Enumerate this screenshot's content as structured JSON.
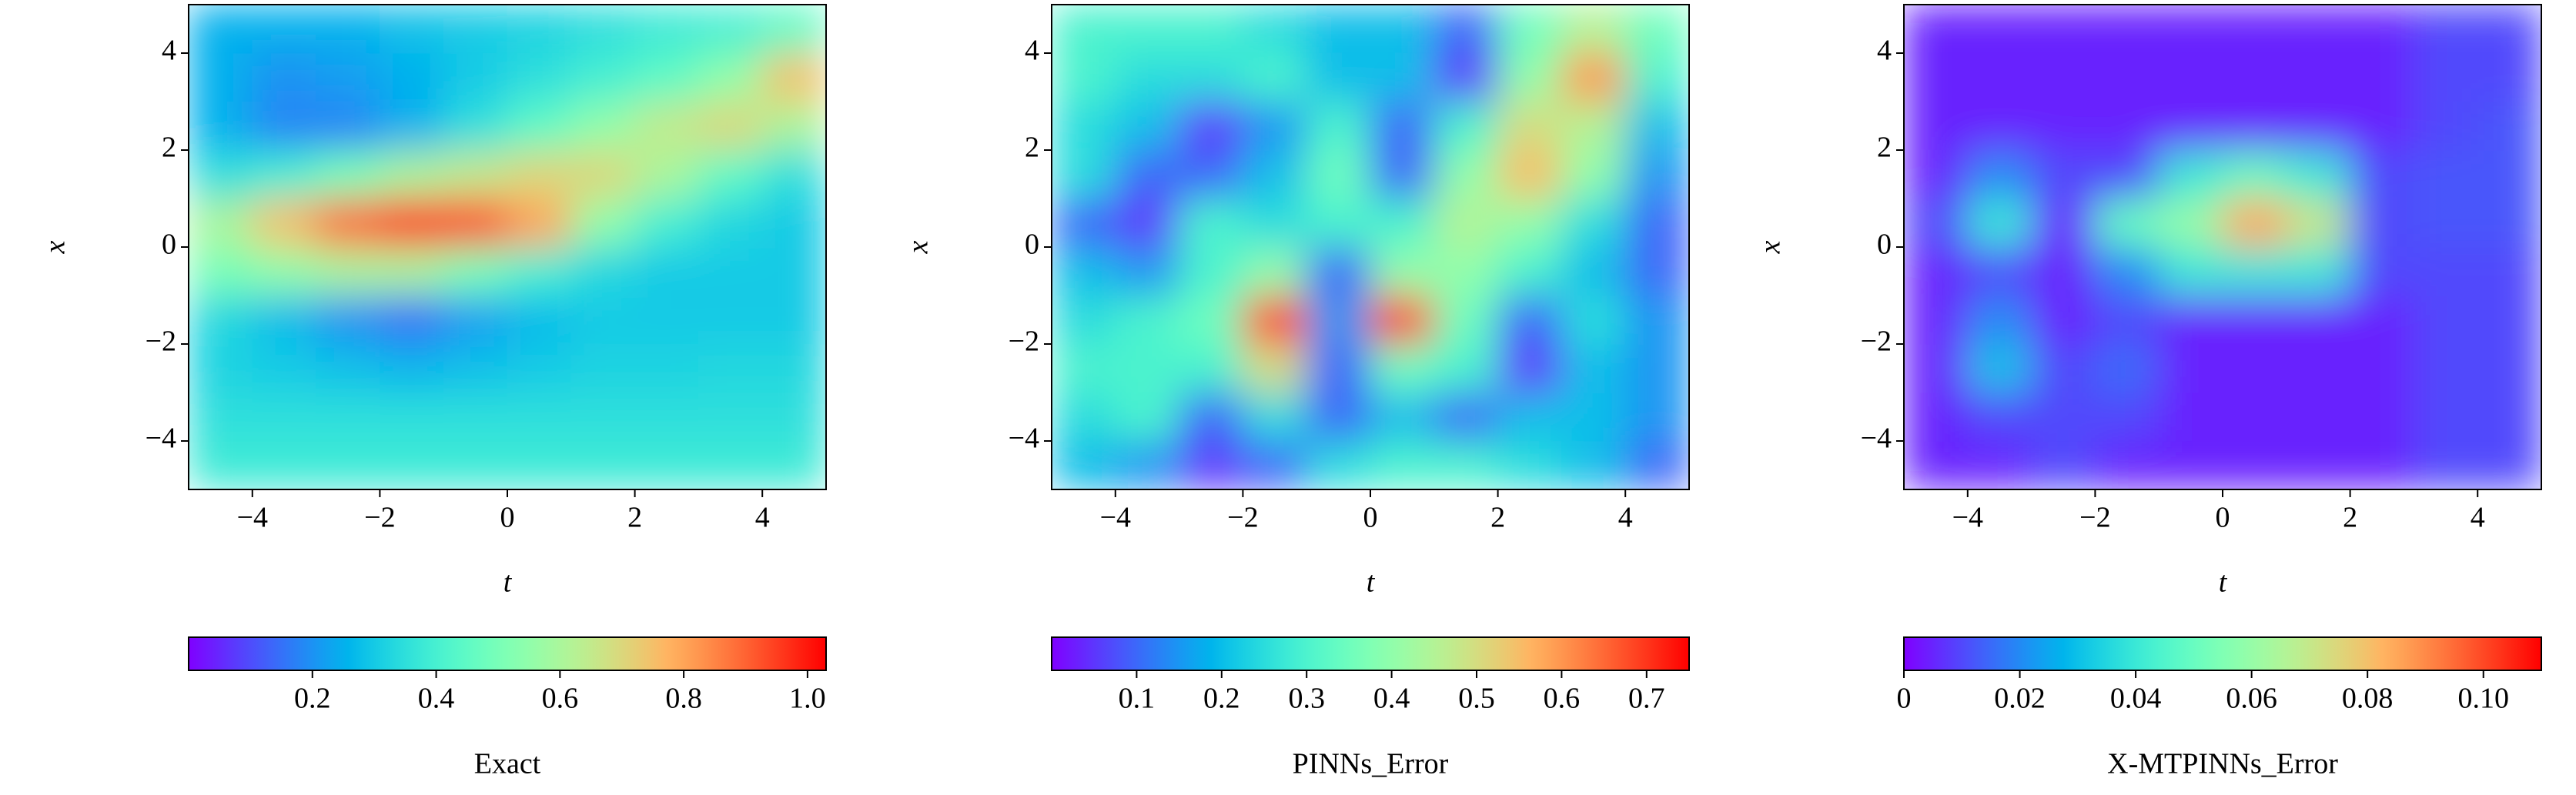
{
  "chart_data": [
    {
      "type": "heatmap",
      "xlabel": "t",
      "ylabel": "x",
      "colormap": "rainbow",
      "x": [
        -4.5,
        -3.5,
        -2.5,
        -1.5,
        -0.5,
        0.5,
        1.5,
        2.5,
        3.5,
        4.5
      ],
      "y": [
        -4.5,
        -3.5,
        -2.5,
        -1.5,
        -0.5,
        0.5,
        1.5,
        2.5,
        3.5,
        4.5
      ],
      "z": [
        [
          0.38,
          0.38,
          0.38,
          0.38,
          0.38,
          0.38,
          0.38,
          0.38,
          0.38,
          0.38
        ],
        [
          0.35,
          0.35,
          0.35,
          0.35,
          0.35,
          0.35,
          0.35,
          0.35,
          0.35,
          0.35
        ],
        [
          0.32,
          0.3,
          0.28,
          0.26,
          0.28,
          0.3,
          0.32,
          0.32,
          0.33,
          0.33
        ],
        [
          0.33,
          0.27,
          0.2,
          0.15,
          0.22,
          0.27,
          0.3,
          0.3,
          0.3,
          0.3
        ],
        [
          0.5,
          0.55,
          0.6,
          0.6,
          0.5,
          0.4,
          0.33,
          0.3,
          0.3,
          0.3
        ],
        [
          0.6,
          0.75,
          0.9,
          1.0,
          0.95,
          0.8,
          0.55,
          0.4,
          0.33,
          0.3
        ],
        [
          0.35,
          0.4,
          0.5,
          0.6,
          0.65,
          0.7,
          0.7,
          0.6,
          0.45,
          0.35
        ],
        [
          0.25,
          0.18,
          0.18,
          0.25,
          0.35,
          0.45,
          0.55,
          0.65,
          0.7,
          0.6
        ],
        [
          0.25,
          0.2,
          0.22,
          0.25,
          0.3,
          0.35,
          0.4,
          0.45,
          0.55,
          0.75
        ],
        [
          0.25,
          0.25,
          0.25,
          0.28,
          0.3,
          0.32,
          0.35,
          0.38,
          0.4,
          0.45
        ]
      ],
      "xlim": [
        -5,
        5
      ],
      "ylim": [
        -5,
        5
      ],
      "xticks": [
        {
          "value": -4,
          "label": "−4"
        },
        {
          "value": -2,
          "label": "−2"
        },
        0,
        2,
        4
      ],
      "yticks": [
        {
          "value": -4,
          "label": "−4"
        },
        {
          "value": -2,
          "label": "−2"
        },
        0,
        2,
        4
      ],
      "colorbar": {
        "label": "Exact",
        "lim": [
          0.0,
          1.03
        ],
        "ticks": [
          0.2,
          0.4,
          0.6,
          0.8,
          {
            "value": 1.0,
            "label": "1.0"
          }
        ]
      }
    },
    {
      "type": "heatmap",
      "xlabel": "t",
      "ylabel": "x",
      "colormap": "rainbow",
      "x": [
        -4.5,
        -3.5,
        -2.5,
        -1.5,
        -0.5,
        0.5,
        1.5,
        2.5,
        3.5,
        4.5
      ],
      "y": [
        -4.5,
        -3.5,
        -2.5,
        -1.5,
        -0.5,
        0.5,
        1.5,
        2.5,
        3.5,
        4.5
      ],
      "z": [
        [
          0.2,
          0.15,
          0.05,
          0.1,
          0.25,
          0.3,
          0.3,
          0.25,
          0.2,
          0.1
        ],
        [
          0.25,
          0.3,
          0.1,
          0.25,
          0.1,
          0.2,
          0.1,
          0.2,
          0.2,
          0.15
        ],
        [
          0.3,
          0.3,
          0.3,
          0.5,
          0.1,
          0.35,
          0.3,
          0.05,
          0.2,
          0.15
        ],
        [
          0.25,
          0.3,
          0.35,
          0.7,
          0.15,
          0.7,
          0.35,
          0.1,
          0.25,
          0.15
        ],
        [
          0.2,
          0.15,
          0.3,
          0.4,
          0.1,
          0.4,
          0.4,
          0.3,
          0.2,
          0.1
        ],
        [
          0.1,
          0.05,
          0.3,
          0.25,
          0.3,
          0.3,
          0.45,
          0.4,
          0.25,
          0.1
        ],
        [
          0.25,
          0.1,
          0.1,
          0.2,
          0.35,
          0.1,
          0.4,
          0.55,
          0.4,
          0.15
        ],
        [
          0.25,
          0.2,
          0.05,
          0.15,
          0.3,
          0.1,
          0.3,
          0.5,
          0.45,
          0.2
        ],
        [
          0.3,
          0.25,
          0.25,
          0.3,
          0.2,
          0.2,
          0.05,
          0.4,
          0.6,
          0.3
        ],
        [
          0.3,
          0.3,
          0.3,
          0.25,
          0.2,
          0.2,
          0.1,
          0.35,
          0.45,
          0.35
        ]
      ],
      "xlim": [
        -5,
        5
      ],
      "ylim": [
        -5,
        5
      ],
      "xticks": [
        {
          "value": -4,
          "label": "−4"
        },
        {
          "value": -2,
          "label": "−2"
        },
        0,
        2,
        4
      ],
      "yticks": [
        {
          "value": -4,
          "label": "−4"
        },
        {
          "value": -2,
          "label": "−2"
        },
        0,
        2,
        4
      ],
      "colorbar": {
        "label": "PINNs_Error",
        "lim": [
          0.0,
          0.75
        ],
        "ticks": [
          0.1,
          0.2,
          0.3,
          0.4,
          0.5,
          0.6,
          0.7
        ]
      }
    },
    {
      "type": "heatmap",
      "xlabel": "t",
      "ylabel": "x",
      "colormap": "rainbow",
      "x": [
        -4.5,
        -3.5,
        -2.5,
        -1.5,
        -0.5,
        0.5,
        1.5,
        2.5,
        3.5,
        4.5
      ],
      "y": [
        -4.5,
        -3.5,
        -2.5,
        -1.5,
        -0.5,
        0.5,
        1.5,
        2.5,
        3.5,
        4.5
      ],
      "z": [
        [
          0.005,
          0.005,
          0.01,
          0.005,
          0.005,
          0.005,
          0.005,
          0.005,
          0.01,
          0.01
        ],
        [
          0.005,
          0.01,
          0.01,
          0.01,
          0.005,
          0.005,
          0.005,
          0.005,
          0.01,
          0.01
        ],
        [
          0.005,
          0.03,
          0.01,
          0.015,
          0.005,
          0.005,
          0.005,
          0.005,
          0.01,
          0.01
        ],
        [
          0.005,
          0.02,
          0.005,
          0.01,
          0.005,
          0.005,
          0.005,
          0.005,
          0.01,
          0.01
        ],
        [
          0.005,
          0.01,
          0.005,
          0.02,
          0.04,
          0.04,
          0.04,
          0.01,
          0.01,
          0.01
        ],
        [
          0.01,
          0.04,
          0.005,
          0.05,
          0.06,
          0.085,
          0.07,
          0.01,
          0.012,
          0.012
        ],
        [
          0.005,
          0.02,
          0.01,
          0.01,
          0.04,
          0.05,
          0.04,
          0.01,
          0.012,
          0.012
        ],
        [
          0.005,
          0.005,
          0.005,
          0.005,
          0.005,
          0.005,
          0.005,
          0.005,
          0.01,
          0.012
        ],
        [
          0.005,
          0.005,
          0.005,
          0.005,
          0.005,
          0.005,
          0.005,
          0.005,
          0.01,
          0.01
        ],
        [
          0.005,
          0.005,
          0.005,
          0.005,
          0.005,
          0.005,
          0.005,
          0.005,
          0.01,
          0.01
        ]
      ],
      "xlim": [
        -5,
        5
      ],
      "ylim": [
        -5,
        5
      ],
      "xticks": [
        {
          "value": -4,
          "label": "−4"
        },
        {
          "value": -2,
          "label": "−2"
        },
        0,
        2,
        4
      ],
      "yticks": [
        {
          "value": -4,
          "label": "−4"
        },
        {
          "value": -2,
          "label": "−2"
        },
        0,
        2,
        4
      ],
      "colorbar": {
        "label": "X-MTPINNs_Error",
        "lim": [
          0,
          0.11
        ],
        "ticks": [
          0,
          0.02,
          0.04,
          0.06,
          0.08,
          {
            "value": 0.1,
            "label": "0.10"
          }
        ]
      }
    }
  ]
}
